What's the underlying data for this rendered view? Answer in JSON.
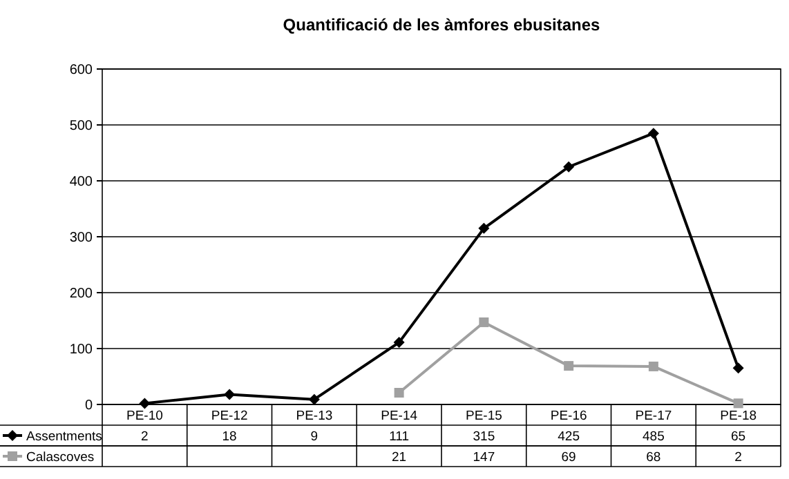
{
  "chart_data": {
    "type": "line",
    "title": "Quantificació de les àmfores ebusitanes",
    "categories": [
      "PE-10",
      "PE-12",
      "PE-13",
      "PE-14",
      "PE-15",
      "PE-16",
      "PE-17",
      "PE-18"
    ],
    "series": [
      {
        "name": "Assentments",
        "color": "#000000",
        "marker": "diamond",
        "values": [
          2,
          18,
          9,
          111,
          315,
          425,
          485,
          65
        ]
      },
      {
        "name": "Calascoves",
        "color": "#a0a0a0",
        "marker": "square",
        "values": [
          null,
          null,
          null,
          21,
          147,
          69,
          68,
          2
        ]
      }
    ],
    "ylim": [
      0,
      600
    ],
    "yticks": [
      0,
      100,
      200,
      300,
      400,
      500,
      600
    ],
    "grid": "y",
    "legend": "bottom",
    "data_labels": true
  }
}
